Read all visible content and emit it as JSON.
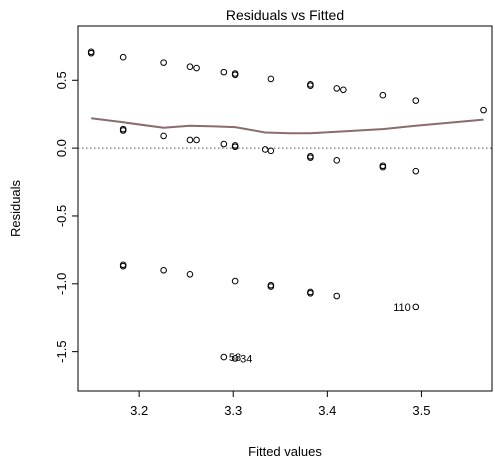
{
  "chart_data": {
    "type": "scatter",
    "title": "Residuals vs Fitted",
    "xlabel": "Fitted values",
    "ylabel": "Residuals",
    "xlim": [
      3.135,
      3.575
    ],
    "ylim": [
      -1.79,
      0.9
    ],
    "x_ticks": [
      "3.2",
      "3.3",
      "3.4",
      "3.5"
    ],
    "x_tick_values": [
      3.2,
      3.3,
      3.4,
      3.5
    ],
    "y_ticks": [
      "-1.5",
      "-1.0",
      "-0.5",
      "0.0",
      "0.5"
    ],
    "y_tick_values": [
      -1.5,
      -1.0,
      -0.5,
      0.0,
      0.5
    ],
    "reference_line": {
      "y": 0,
      "style": "dotted",
      "color": "#555555"
    },
    "points": [
      {
        "x": 3.149,
        "y": 0.7
      },
      {
        "x": 3.149,
        "y": 0.71
      },
      {
        "x": 3.183,
        "y": 0.67
      },
      {
        "x": 3.183,
        "y": 0.13
      },
      {
        "x": 3.183,
        "y": 0.14
      },
      {
        "x": 3.183,
        "y": -0.86
      },
      {
        "x": 3.183,
        "y": -0.87
      },
      {
        "x": 3.226,
        "y": 0.63
      },
      {
        "x": 3.226,
        "y": 0.09
      },
      {
        "x": 3.226,
        "y": -0.9
      },
      {
        "x": 3.254,
        "y": 0.6
      },
      {
        "x": 3.254,
        "y": 0.06
      },
      {
        "x": 3.254,
        "y": -0.93
      },
      {
        "x": 3.261,
        "y": 0.59
      },
      {
        "x": 3.261,
        "y": 0.06
      },
      {
        "x": 3.29,
        "y": 0.56
      },
      {
        "x": 3.29,
        "y": 0.03
      },
      {
        "x": 3.29,
        "y": -1.54
      },
      {
        "x": 3.302,
        "y": 0.55
      },
      {
        "x": 3.302,
        "y": 0.54
      },
      {
        "x": 3.302,
        "y": 0.02
      },
      {
        "x": 3.302,
        "y": 0.01
      },
      {
        "x": 3.302,
        "y": -0.98
      },
      {
        "x": 3.302,
        "y": -1.55
      },
      {
        "x": 3.334,
        "y": -0.01
      },
      {
        "x": 3.34,
        "y": 0.51
      },
      {
        "x": 3.34,
        "y": -0.02
      },
      {
        "x": 3.34,
        "y": -1.01
      },
      {
        "x": 3.34,
        "y": -1.02
      },
      {
        "x": 3.382,
        "y": 0.47
      },
      {
        "x": 3.382,
        "y": 0.46
      },
      {
        "x": 3.382,
        "y": -0.06
      },
      {
        "x": 3.382,
        "y": -0.07
      },
      {
        "x": 3.382,
        "y": -1.06
      },
      {
        "x": 3.382,
        "y": -1.07
      },
      {
        "x": 3.41,
        "y": 0.44
      },
      {
        "x": 3.41,
        "y": -0.09
      },
      {
        "x": 3.41,
        "y": -1.09
      },
      {
        "x": 3.417,
        "y": 0.43
      },
      {
        "x": 3.459,
        "y": 0.39
      },
      {
        "x": 3.459,
        "y": -0.13
      },
      {
        "x": 3.459,
        "y": -0.14
      },
      {
        "x": 3.494,
        "y": 0.35
      },
      {
        "x": 3.494,
        "y": -0.17
      },
      {
        "x": 3.494,
        "y": -1.17
      },
      {
        "x": 3.566,
        "y": 0.28
      }
    ],
    "annotations": [
      {
        "text": "110",
        "x": 3.494,
        "y": -1.17,
        "anchor": "end"
      },
      {
        "text": "58",
        "x": 3.29,
        "y": -1.54,
        "anchor": "start"
      },
      {
        "text": "34",
        "x": 3.302,
        "y": -1.55,
        "anchor": "start"
      }
    ],
    "smoother": {
      "color": "#8a6c6c",
      "x": [
        3.149,
        3.183,
        3.226,
        3.254,
        3.28,
        3.302,
        3.334,
        3.36,
        3.382,
        3.41,
        3.459,
        3.494,
        3.566
      ],
      "y": [
        0.22,
        0.19,
        0.15,
        0.165,
        0.16,
        0.155,
        0.115,
        0.11,
        0.11,
        0.12,
        0.14,
        0.165,
        0.21
      ]
    }
  }
}
